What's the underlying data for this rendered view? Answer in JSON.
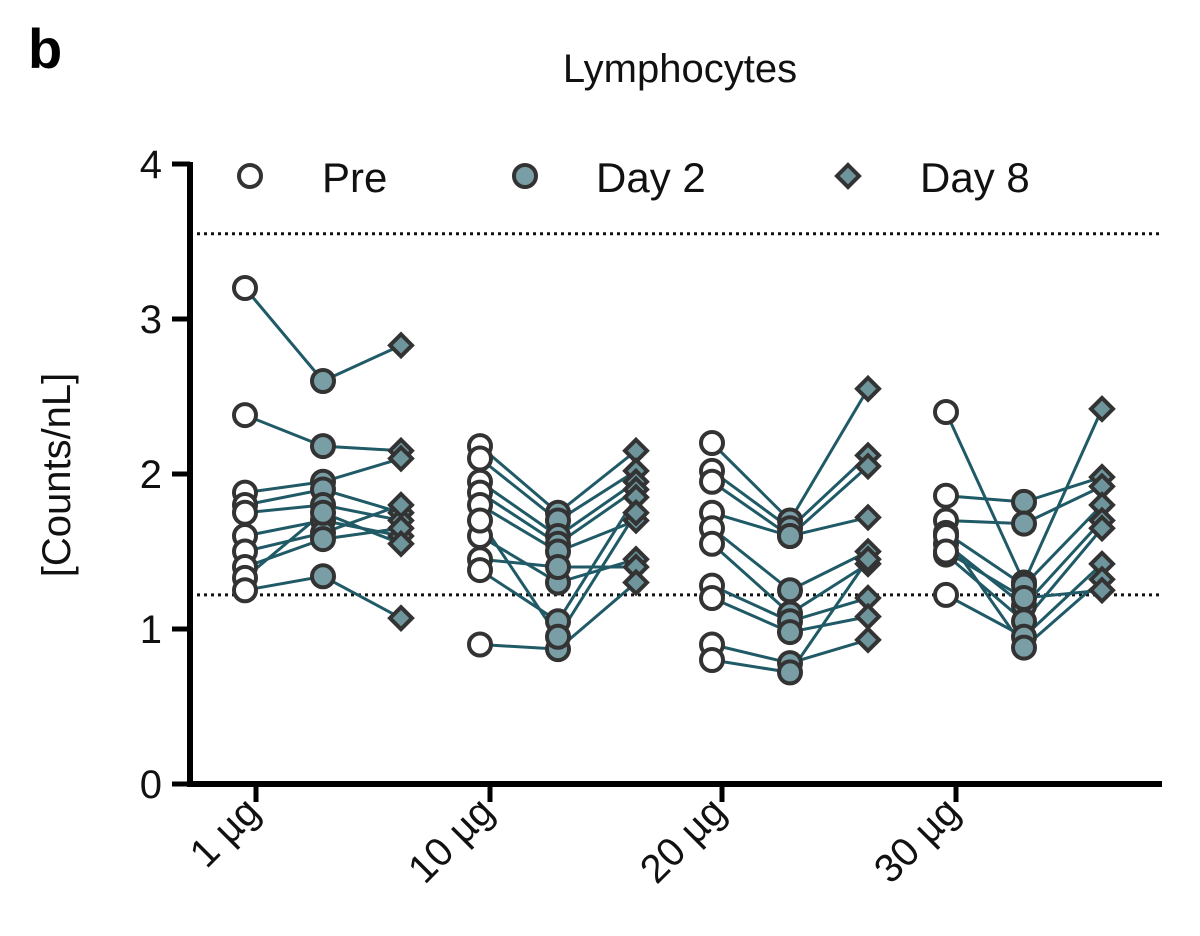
{
  "panel_label": "b",
  "chart_data": {
    "type": "scatter",
    "title": "Lymphocytes",
    "xlabel": "",
    "ylabel": "[Counts/nL]",
    "ylim": [
      0,
      4
    ],
    "yticks": [
      0,
      1,
      2,
      3,
      4
    ],
    "categories": [
      "1 µg",
      "10 µg",
      "20 µg",
      "30 µg"
    ],
    "timepoints": [
      "Pre",
      "Day 2",
      "Day 8"
    ],
    "legend": [
      {
        "name": "Pre",
        "marker": "open-circle"
      },
      {
        "name": "Day 2",
        "marker": "filled-circle"
      },
      {
        "name": "Day 8",
        "marker": "diamond"
      }
    ],
    "reference_lines": [
      3.55,
      1.22
    ],
    "groups": [
      {
        "dose": "1 µg",
        "subjects": [
          [
            3.2,
            2.6,
            2.83
          ],
          [
            2.38,
            2.18,
            2.15
          ],
          [
            1.88,
            1.95,
            2.1
          ],
          [
            1.8,
            1.9,
            1.75
          ],
          [
            1.75,
            1.8,
            1.7
          ],
          [
            1.6,
            1.7,
            1.6
          ],
          [
            1.5,
            1.62,
            1.8
          ],
          [
            1.4,
            1.58,
            1.65
          ],
          [
            1.33,
            1.75,
            1.55
          ],
          [
            1.25,
            1.34,
            1.07
          ]
        ]
      },
      {
        "dose": "10 µg",
        "subjects": [
          [
            2.18,
            1.75,
            2.15
          ],
          [
            2.1,
            1.7,
            2.02
          ],
          [
            1.95,
            1.6,
            1.95
          ],
          [
            1.88,
            1.55,
            1.9
          ],
          [
            1.8,
            1.5,
            1.7
          ],
          [
            1.6,
            1.3,
            1.45
          ],
          [
            1.45,
            1.4,
            1.4
          ],
          [
            1.38,
            1.05,
            1.85
          ],
          [
            0.9,
            0.87,
            1.3
          ],
          [
            1.7,
            0.95,
            1.75
          ]
        ]
      },
      {
        "dose": "20 µg",
        "subjects": [
          [
            2.2,
            1.7,
            2.55
          ],
          [
            2.02,
            1.65,
            2.12
          ],
          [
            1.95,
            1.6,
            2.05
          ],
          [
            1.75,
            1.6,
            1.72
          ],
          [
            1.65,
            1.25,
            1.5
          ],
          [
            1.55,
            1.1,
            1.42
          ],
          [
            1.28,
            1.05,
            1.2
          ],
          [
            1.2,
            0.98,
            1.08
          ],
          [
            0.9,
            0.78,
            0.93
          ],
          [
            0.8,
            0.72,
            1.45
          ]
        ]
      },
      {
        "dose": "30 µg",
        "subjects": [
          [
            2.4,
            1.3,
            2.42
          ],
          [
            1.86,
            1.82,
            1.98
          ],
          [
            1.7,
            1.68,
            1.92
          ],
          [
            1.62,
            1.28,
            1.8
          ],
          [
            1.55,
            1.15,
            1.7
          ],
          [
            1.48,
            1.05,
            1.65
          ],
          [
            1.22,
            0.95,
            1.42
          ],
          [
            1.6,
            0.88,
            1.32
          ],
          [
            1.5,
            1.2,
            1.25
          ]
        ]
      }
    ]
  },
  "colors": {
    "line": "#1f5a66",
    "day2_fill": "#7a9ea5",
    "day8_fill": "#6f959c",
    "marker_edge": "#333333",
    "pre_fill": "#ffffff",
    "axis": "#000000"
  }
}
